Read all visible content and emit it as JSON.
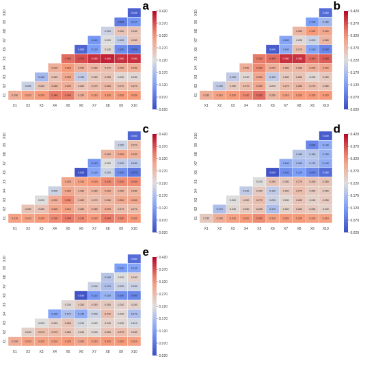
{
  "chart_data": [
    {
      "type": "heatmap",
      "panel_label": "a",
      "variables": [
        "X1",
        "X2",
        "X3",
        "X4",
        "X5",
        "X6",
        "X7",
        "X8",
        "X9",
        "X10"
      ],
      "row_labels": [
        "X10",
        "X9",
        "X8",
        "X7",
        "X6",
        "X5",
        "X4",
        "X3",
        "X2",
        "X1"
      ],
      "col_labels": [
        "X1",
        "X2",
        "X3",
        "X4",
        "X5",
        "X6",
        "X7",
        "X8",
        "X9",
        "X10"
      ],
      "colorbar_ticks": [
        "0.420",
        "0.370",
        "0.320",
        "0.270",
        "0.220",
        "0.170",
        "0.120",
        "0.070",
        "0.020"
      ],
      "colorbar_range": [
        0.02,
        0.42
      ],
      "rows": [
        [
          null,
          null,
          null,
          null,
          null,
          null,
          null,
          null,
          null,
          0.045
        ],
        [
          null,
          null,
          null,
          null,
          null,
          null,
          null,
          null,
          0.08,
          0.11
        ],
        [
          null,
          null,
          null,
          null,
          null,
          null,
          null,
          0.2,
          0.26,
          0.26
        ],
        [
          null,
          null,
          null,
          null,
          null,
          null,
          0.11,
          0.22,
          0.19,
          0.26
        ],
        [
          null,
          null,
          null,
          null,
          null,
          0.05,
          0.12,
          0.23,
          0.1,
          0.07
        ],
        [
          null,
          null,
          null,
          null,
          0.35,
          0.37,
          0.39,
          0.4,
          0.39,
          0.39
        ],
        [
          null,
          null,
          null,
          0.29,
          0.32,
          0.29,
          0.28,
          0.27,
          0.29,
          0.29
        ],
        [
          null,
          null,
          0.16,
          0.26,
          0.3,
          0.19,
          0.25,
          0.26,
          0.23,
          0.23
        ],
        [
          null,
          0.2,
          0.26,
          0.28,
          0.29,
          0.26,
          0.27,
          0.28,
          0.27,
          0.27
        ],
        [
          0.29,
          0.31,
          0.32,
          0.34,
          0.34,
          0.29,
          0.31,
          0.32,
          0.32,
          0.32
        ]
      ]
    },
    {
      "type": "heatmap",
      "panel_label": "b",
      "variables": [
        "X1",
        "X2",
        "X3",
        "X4",
        "X5",
        "X6",
        "X7",
        "X8",
        "X9",
        "X10"
      ],
      "row_labels": [
        "X10",
        "X9",
        "X8",
        "X7",
        "X6",
        "X5",
        "X4",
        "X3",
        "X2",
        "X1"
      ],
      "col_labels": [
        "X1",
        "X2",
        "X3",
        "X4",
        "X5",
        "X6",
        "X7",
        "X8",
        "X9",
        "X10"
      ],
      "colorbar_ticks": [
        "0.420",
        "0.370",
        "0.320",
        "0.270",
        "0.220",
        "0.170",
        "0.120",
        "0.070",
        "0.020"
      ],
      "colorbar_range": [
        0.02,
        0.42
      ],
      "rows": [
        [
          null,
          null,
          null,
          null,
          null,
          null,
          null,
          null,
          null,
          0.06
        ],
        [
          null,
          null,
          null,
          null,
          null,
          null,
          null,
          null,
          0.12,
          0.16
        ],
        [
          null,
          null,
          null,
          null,
          null,
          null,
          null,
          0.28,
          0.32,
          0.3
        ],
        [
          null,
          null,
          null,
          null,
          null,
          null,
          0.13,
          0.23,
          0.2,
          0.28
        ],
        [
          null,
          null,
          null,
          null,
          null,
          0.04,
          0.14,
          0.27,
          0.13,
          0.09
        ],
        [
          null,
          null,
          null,
          null,
          0.34,
          0.35,
          0.39,
          0.39,
          0.35,
          0.36
        ],
        [
          null,
          null,
          null,
          0.29,
          0.33,
          0.29,
          0.28,
          0.28,
          0.29,
          0.3
        ],
        [
          null,
          null,
          0.19,
          0.23,
          0.3,
          0.19,
          0.25,
          0.26,
          0.23,
          0.25
        ],
        [
          null,
          0.19,
          0.25,
          0.27,
          0.3,
          0.24,
          0.27,
          0.28,
          0.27,
          0.26
        ],
        [
          0.29,
          0.31,
          0.32,
          0.33,
          0.35,
          0.28,
          0.31,
          0.32,
          0.32,
          0.32
        ]
      ]
    },
    {
      "type": "heatmap",
      "panel_label": "c",
      "variables": [
        "X1",
        "X2",
        "X3",
        "X4",
        "X5",
        "X6",
        "X7",
        "X8",
        "X9",
        "X10"
      ],
      "row_labels": [
        "X10",
        "X9",
        "X8",
        "X7",
        "X6",
        "X5",
        "X4",
        "X3",
        "X2",
        "X1"
      ],
      "col_labels": [
        "X1",
        "X2",
        "X3",
        "X4",
        "X5",
        "X6",
        "X7",
        "X8",
        "X9",
        "X10"
      ],
      "colorbar_ticks": [
        "0.420",
        "0.370",
        "0.320",
        "0.270",
        "0.220",
        "0.170",
        "0.120",
        "0.070",
        "0.020"
      ],
      "colorbar_range": [
        0.02,
        0.42
      ],
      "rows": [
        [
          null,
          null,
          null,
          null,
          null,
          null,
          null,
          null,
          null,
          0.05
        ],
        [
          null,
          null,
          null,
          null,
          null,
          null,
          null,
          null,
          0.2,
          0.27
        ],
        [
          null,
          null,
          null,
          null,
          null,
          null,
          null,
          0.28,
          0.3,
          0.29
        ],
        [
          null,
          null,
          null,
          null,
          null,
          null,
          0.11,
          0.22,
          0.19,
          0.18
        ],
        [
          null,
          null,
          null,
          null,
          null,
          0.03,
          0.13,
          0.2,
          0.1,
          0.07
        ],
        [
          null,
          null,
          null,
          null,
          0.3,
          0.31,
          0.32,
          0.33,
          0.33,
          0.33
        ],
        [
          null,
          null,
          null,
          0.2,
          0.3,
          0.28,
          0.28,
          0.29,
          0.28,
          0.28
        ],
        [
          null,
          null,
          0.22,
          0.29,
          0.33,
          0.28,
          0.27,
          0.28,
          0.3,
          0.3
        ],
        [
          null,
          0.26,
          0.26,
          0.3,
          0.31,
          0.28,
          0.28,
          0.29,
          0.27,
          0.27
        ],
        [
          0.31,
          0.31,
          0.32,
          0.33,
          0.34,
          0.33,
          0.32,
          0.34,
          0.33,
          0.32
        ]
      ]
    },
    {
      "type": "heatmap",
      "panel_label": "d",
      "variables": [
        "X1",
        "X2",
        "X3",
        "X4",
        "X5",
        "X6",
        "X7",
        "X8",
        "X9",
        "X10"
      ],
      "row_labels": [
        "X10",
        "X9",
        "X8",
        "X7",
        "X6",
        "X5",
        "X4",
        "X3",
        "X2",
        "X1"
      ],
      "col_labels": [
        "X1",
        "X2",
        "X3",
        "X4",
        "X5",
        "X6",
        "X7",
        "X8",
        "X9",
        "X10"
      ],
      "colorbar_ticks": [
        "0.420",
        "0.370",
        "0.320",
        "0.270",
        "0.220",
        "0.170",
        "0.120",
        "0.070",
        "0.020"
      ],
      "colorbar_range": [
        0.02,
        0.42
      ],
      "rows": [
        [
          null,
          null,
          null,
          null,
          null,
          null,
          null,
          null,
          null,
          0.04
        ],
        [
          null,
          null,
          null,
          null,
          null,
          null,
          null,
          null,
          0.09,
          0.14
        ],
        [
          null,
          null,
          null,
          null,
          null,
          null,
          null,
          0.18,
          0.18,
          0.15
        ],
        [
          null,
          null,
          null,
          null,
          null,
          null,
          0.14,
          0.16,
          0.17,
          0.14
        ],
        [
          null,
          null,
          null,
          null,
          null,
          0.03,
          0.1,
          0.12,
          0.09,
          0.06
        ],
        [
          null,
          null,
          null,
          null,
          0.22,
          0.26,
          0.25,
          0.27,
          0.26,
          0.26
        ],
        [
          null,
          null,
          null,
          0.19,
          0.25,
          0.19,
          0.25,
          0.27,
          0.25,
          0.25
        ],
        [
          null,
          null,
          0.22,
          0.25,
          0.27,
          0.2,
          0.23,
          0.26,
          0.24,
          0.25
        ],
        [
          null,
          0.17,
          0.23,
          0.25,
          0.26,
          0.17,
          0.24,
          0.26,
          0.25,
          0.24
        ],
        [
          0.25,
          0.29,
          0.31,
          0.32,
          0.33,
          0.31,
          0.32,
          0.32,
          0.31,
          0.31
        ]
      ]
    },
    {
      "type": "heatmap",
      "panel_label": "e",
      "variables": [
        "X1",
        "X2",
        "X3",
        "X4",
        "X5",
        "X6",
        "X7",
        "X8",
        "X9",
        "X10"
      ],
      "row_labels": [
        "X10",
        "X9",
        "X8",
        "X7",
        "X6",
        "X5",
        "X4",
        "X3",
        "X2",
        "X1"
      ],
      "col_labels": [
        "X1",
        "X2",
        "X3",
        "X4",
        "X5",
        "X6",
        "X7",
        "X8",
        "X9",
        "X10"
      ],
      "colorbar_ticks": [
        "0.420",
        "0.370",
        "0.320",
        "0.270",
        "0.220",
        "0.170",
        "0.120",
        "0.070",
        "0.020"
      ],
      "colorbar_range": [
        0.02,
        0.42
      ],
      "rows": [
        [
          null,
          null,
          null,
          null,
          null,
          null,
          null,
          null,
          null,
          0.06
        ],
        [
          null,
          null,
          null,
          null,
          null,
          null,
          null,
          null,
          0.12,
          0.13
        ],
        [
          null,
          null,
          null,
          null,
          null,
          null,
          null,
          0.18,
          0.22,
          0.24
        ],
        [
          null,
          null,
          null,
          null,
          null,
          null,
          0.2,
          0.17,
          0.2,
          0.2
        ],
        [
          null,
          null,
          null,
          null,
          null,
          0.03,
          0.11,
          0.15,
          0.1,
          0.09
        ],
        [
          null,
          null,
          null,
          null,
          0.23,
          0.25,
          0.25,
          0.25,
          0.24,
          0.24
        ],
        [
          null,
          null,
          null,
          0.13,
          0.17,
          0.14,
          0.2,
          0.27,
          0.23,
          0.17
        ],
        [
          null,
          null,
          0.22,
          0.24,
          0.26,
          0.21,
          0.22,
          0.24,
          0.23,
          0.21
        ],
        [
          null,
          0.24,
          0.27,
          0.27,
          0.26,
          0.24,
          0.23,
          0.26,
          0.27,
          0.25
        ],
        [
          0.29,
          0.31,
          0.31,
          0.31,
          0.32,
          0.3,
          0.31,
          0.32,
          0.32,
          0.31
        ]
      ]
    }
  ]
}
